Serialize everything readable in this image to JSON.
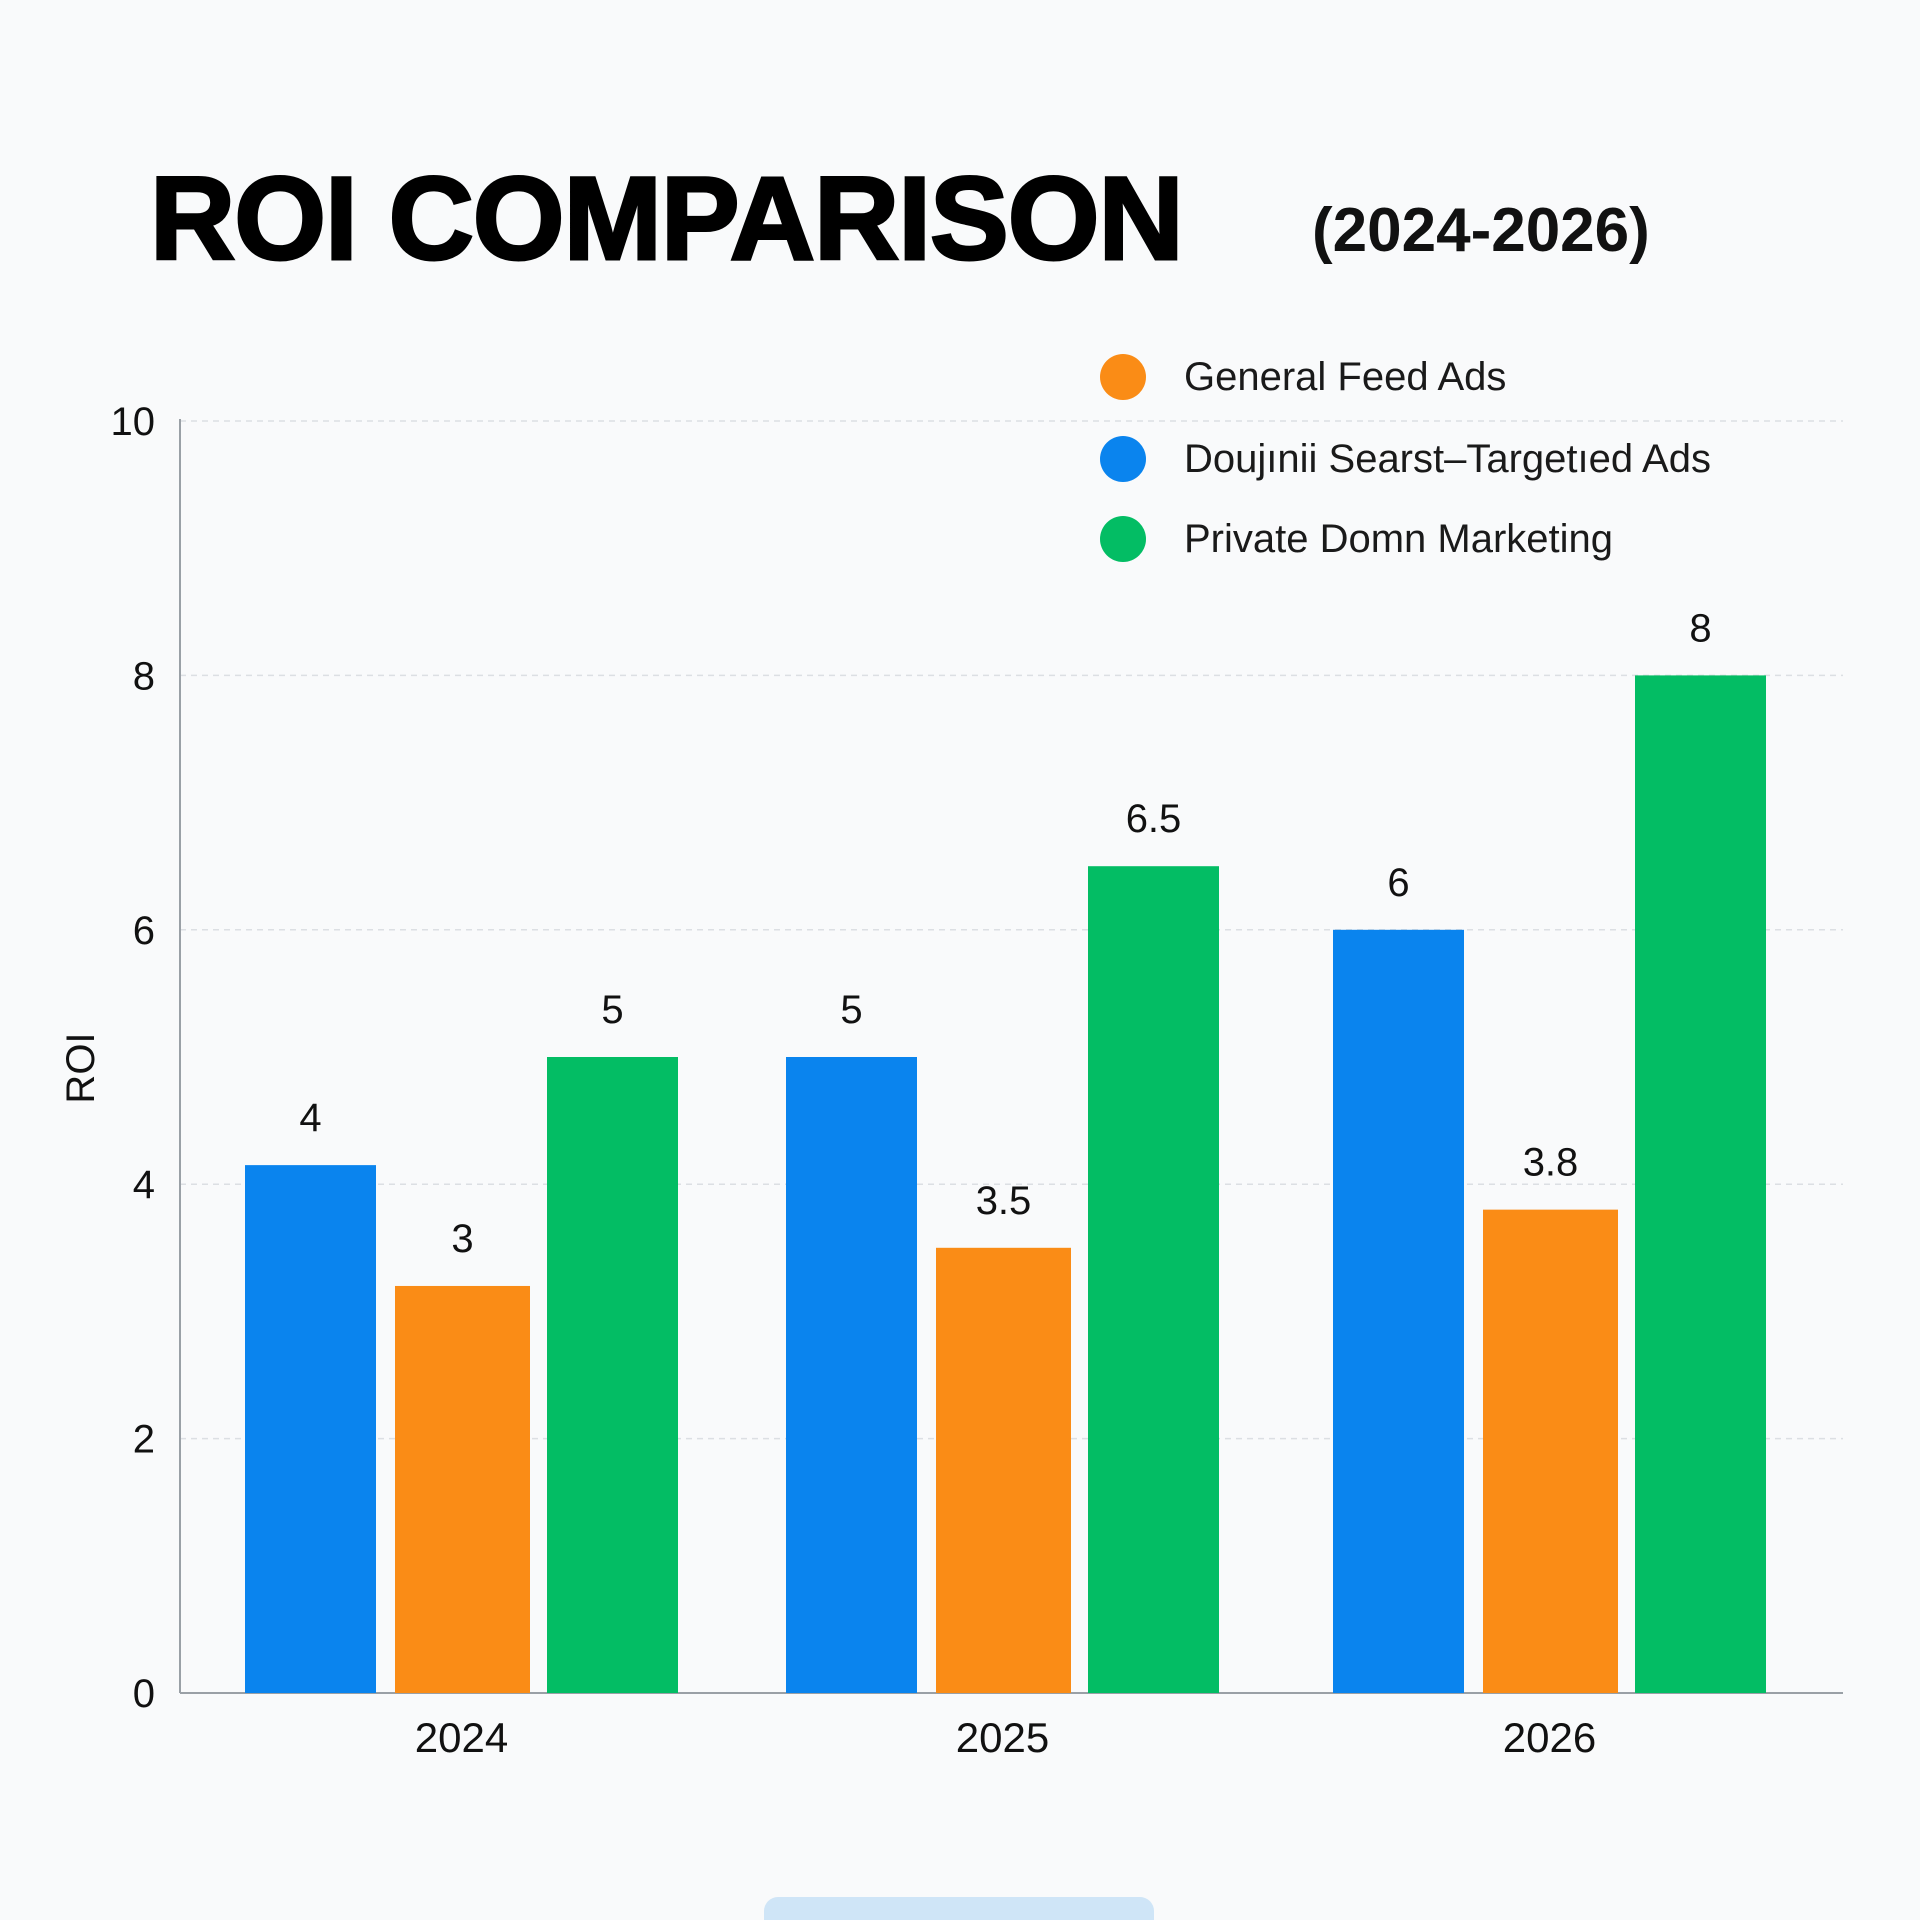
{
  "chart_data": {
    "type": "bar",
    "title": "ROI COMPARISON",
    "subtitle": "(2024-2026)",
    "xlabel": "",
    "ylabel": "ROI",
    "ylim": [
      0,
      10
    ],
    "yticks": [
      0,
      2,
      4,
      6,
      8,
      10
    ],
    "categories": [
      "2024",
      "2025",
      "2026"
    ],
    "grid": true,
    "legend_position": "top-right",
    "legend": [
      {
        "name": "General Feed Ads",
        "color": "#fa8c16"
      },
      {
        "name": "Doujınii Searst–Targetıed Ads",
        "color": "#0a84ee"
      },
      {
        "name": "Private Domn Marketing",
        "color": "#03bd64"
      }
    ],
    "groups": [
      {
        "category": "2024",
        "bars": [
          {
            "series": "Doujınii Searst–Targetıed Ads",
            "value": 4.15,
            "label": "4",
            "color": "#0a84ee"
          },
          {
            "series": "General Feed Ads",
            "value": 3.2,
            "label": "3",
            "color": "#fa8c16"
          },
          {
            "series": "Private Domn Marketing",
            "value": 5,
            "label": "5",
            "color": "#03bd64"
          }
        ]
      },
      {
        "category": "2025",
        "bars": [
          {
            "series": "Doujınii Searst–Targetıed Ads",
            "value": 5,
            "label": "5",
            "color": "#0a84ee"
          },
          {
            "series": "General Feed Ads",
            "value": 3.5,
            "label": "3.5",
            "color": "#fa8c16"
          },
          {
            "series": "Private Domn Marketing",
            "value": 6.5,
            "label": "6.5",
            "color": "#03bd64"
          }
        ]
      },
      {
        "category": "2026",
        "bars": [
          {
            "series": "Doujınii Searst–Targetıed Ads",
            "value": 6,
            "label": "6",
            "color": "#0a84ee"
          },
          {
            "series": "General Feed Ads",
            "value": 3.8,
            "label": "3.8",
            "color": "#fa8c16"
          },
          {
            "series": "Private Domn Marketing",
            "value": 8,
            "label": "8",
            "color": "#03bd64"
          }
        ]
      }
    ]
  }
}
